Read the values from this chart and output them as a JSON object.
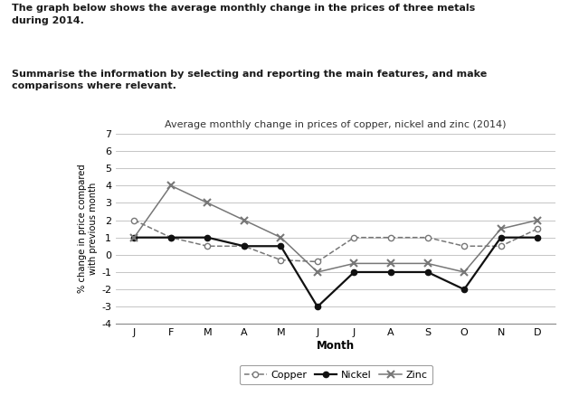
{
  "title": "Average monthly change in prices of copper, nickel and zinc (2014)",
  "xlabel": "Month",
  "ylabel": "% change in price compared\nwith previous month",
  "months": [
    "J",
    "F",
    "M",
    "A",
    "M",
    "J",
    "J",
    "A",
    "S",
    "O",
    "N",
    "D"
  ],
  "copper": [
    2,
    1,
    0.5,
    0.5,
    -0.3,
    -0.4,
    1,
    1,
    1,
    0.5,
    0.5,
    1.5
  ],
  "nickel": [
    1,
    1,
    1,
    0.5,
    0.5,
    -3,
    -1,
    -1,
    -1,
    -2,
    1,
    1
  ],
  "zinc": [
    1,
    4,
    3,
    2,
    1,
    -1,
    -0.5,
    -0.5,
    -0.5,
    -1,
    1.5,
    2
  ],
  "ylim": [
    -4,
    7
  ],
  "yticks": [
    -4,
    -3,
    -2,
    -1,
    0,
    1,
    2,
    3,
    4,
    5,
    6,
    7
  ],
  "bg_color": "#ffffff",
  "header_text1_line1": "The graph below shows the average monthly change in the prices of three metals",
  "header_text1_line2": "during 2014.",
  "header_text2_line1": "Summarise the information by selecting and reporting the main features, and make",
  "header_text2_line2": "comparisons where relevant."
}
